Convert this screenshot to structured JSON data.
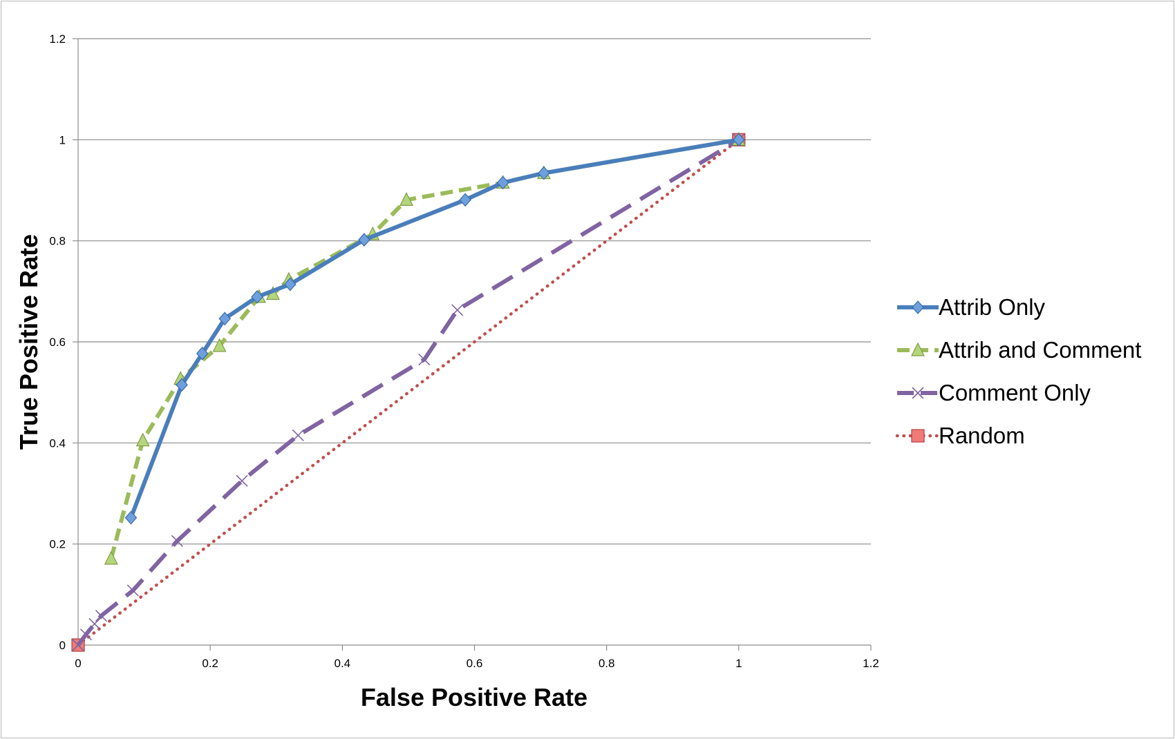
{
  "chart_data": {
    "type": "line",
    "title": "",
    "xlabel": "False Positive Rate",
    "ylabel": "True Positive Rate",
    "xlim": [
      0,
      1.2
    ],
    "ylim": [
      0,
      1.2
    ],
    "x_ticks": [
      "0",
      "0.2",
      "0.4",
      "0.6",
      "0.8",
      "1",
      "1.2"
    ],
    "y_ticks": [
      "0",
      "0.2",
      "0.4",
      "0.6",
      "0.8",
      "1",
      "1.2"
    ],
    "grid": "horizontal major gridlines",
    "legend_position": "right",
    "series": [
      {
        "name": "Attrib Only",
        "color": "#4a7ebb",
        "marker": "diamond",
        "line_style": "solid",
        "x": [
          0.08,
          0.157,
          0.188,
          0.222,
          0.271,
          0.321,
          0.433,
          0.586,
          0.643,
          0.705,
          1.0
        ],
        "y": [
          0.252,
          0.515,
          0.577,
          0.646,
          0.689,
          0.714,
          0.802,
          0.881,
          0.915,
          0.934,
          1.0
        ]
      },
      {
        "name": "Attrib and Comment",
        "color": "#9bbb59",
        "marker": "triangle",
        "line_style": "dashed",
        "x": [
          0.05,
          0.098,
          0.155,
          0.214,
          0.274,
          0.295,
          0.319,
          0.446,
          0.497,
          0.643,
          0.705,
          1.0
        ],
        "y": [
          0.171,
          0.405,
          0.527,
          0.592,
          0.689,
          0.695,
          0.723,
          0.813,
          0.881,
          0.915,
          0.934,
          1.0
        ]
      },
      {
        "name": "Comment Only",
        "color": "#8064a2",
        "marker": "x",
        "line_style": "long-dash",
        "x": [
          0.0,
          0.012,
          0.025,
          0.035,
          0.083,
          0.15,
          0.248,
          0.333,
          0.524,
          0.574,
          1.0
        ],
        "y": [
          0.0,
          0.021,
          0.042,
          0.058,
          0.108,
          0.206,
          0.325,
          0.415,
          0.565,
          0.663,
          1.0
        ]
      },
      {
        "name": "Random",
        "color": "#c0504d",
        "marker": "square",
        "line_style": "dotted",
        "x": [
          0,
          1
        ],
        "y": [
          0,
          1
        ]
      }
    ]
  }
}
